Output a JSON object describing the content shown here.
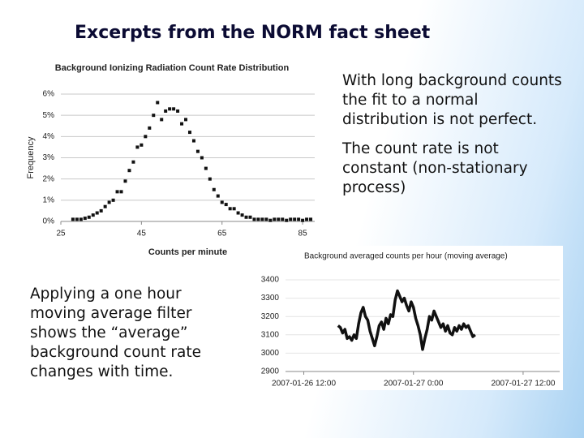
{
  "title": "Excerpts from the NORM fact sheet",
  "paragraphs": [
    "With long background counts the fit to a normal distribution is not perfect.",
    "The count rate is not constant (non-stationary process)",
    "Applying a one hour moving average filter shows the “average” background count rate changes with time."
  ],
  "chart_data": [
    {
      "type": "scatter",
      "title": "Background Ionizing Radiation Count Rate Distribution",
      "x_label": "Counts per minute",
      "y_label": "Frequency",
      "x": [
        28,
        29,
        30,
        31,
        32,
        33,
        34,
        35,
        36,
        37,
        38,
        39,
        40,
        41,
        42,
        43,
        44,
        45,
        46,
        47,
        48,
        49,
        50,
        51,
        52,
        53,
        54,
        55,
        56,
        57,
        58,
        59,
        60,
        61,
        62,
        63,
        64,
        65,
        66,
        67,
        68,
        69,
        70,
        71,
        72,
        73,
        74,
        75,
        76,
        77,
        78,
        79,
        80,
        81,
        82,
        83,
        84,
        85,
        86,
        87
      ],
      "values": [
        0.1,
        0.1,
        0.1,
        0.15,
        0.2,
        0.3,
        0.4,
        0.5,
        0.7,
        0.9,
        1.0,
        1.4,
        1.4,
        1.9,
        2.4,
        2.8,
        3.5,
        3.6,
        4.0,
        4.4,
        5.0,
        5.6,
        4.8,
        5.2,
        5.3,
        5.3,
        5.2,
        4.6,
        4.8,
        4.2,
        3.8,
        3.3,
        3.0,
        2.5,
        2.0,
        1.5,
        1.2,
        0.9,
        0.8,
        0.6,
        0.6,
        0.4,
        0.3,
        0.2,
        0.2,
        0.1,
        0.1,
        0.1,
        0.1,
        0.05,
        0.1,
        0.1,
        0.1,
        0.05,
        0.1,
        0.1,
        0.1,
        0.05,
        0.1,
        0.1
      ],
      "color": "#111111",
      "xlim": [
        25,
        88
      ],
      "xticks": [
        25,
        45,
        65,
        85
      ],
      "ylim": [
        0,
        6
      ],
      "yticks": [
        {
          "value": 0,
          "label": "0%"
        },
        {
          "value": 1,
          "label": "1%"
        },
        {
          "value": 2,
          "label": "2%"
        },
        {
          "value": 3,
          "label": "3%"
        },
        {
          "value": 4,
          "label": "4%"
        },
        {
          "value": 5,
          "label": "5%"
        },
        {
          "value": 6,
          "label": "6%"
        }
      ],
      "grid": true
    },
    {
      "type": "line",
      "title": "Background averaged counts per hour (moving average)",
      "x": [
        3.75,
        4,
        4.25,
        4.5,
        4.75,
        5,
        5.25,
        5.5,
        5.75,
        6,
        6.25,
        6.5,
        6.75,
        7,
        7.25,
        7.5,
        7.75,
        8,
        8.25,
        8.5,
        8.75,
        9,
        9.25,
        9.5,
        9.75,
        10,
        10.25,
        10.5,
        10.75,
        11,
        11.25,
        11.5,
        11.75,
        12,
        12.25,
        12.5,
        12.75,
        13,
        13.25,
        13.5,
        13.75,
        14,
        14.25,
        14.5,
        14.75,
        15,
        15.25,
        15.5,
        15.75,
        16,
        16.25,
        16.5,
        16.75,
        17,
        17.25,
        17.5,
        17.75,
        18,
        18.25,
        18.5,
        18.75
      ],
      "values": [
        3150,
        3140,
        3110,
        3130,
        3080,
        3090,
        3070,
        3100,
        3080,
        3160,
        3220,
        3250,
        3200,
        3180,
        3120,
        3080,
        3040,
        3090,
        3150,
        3170,
        3130,
        3190,
        3160,
        3210,
        3200,
        3290,
        3340,
        3310,
        3280,
        3300,
        3260,
        3230,
        3280,
        3250,
        3190,
        3150,
        3100,
        3020,
        3080,
        3130,
        3200,
        3180,
        3230,
        3200,
        3170,
        3140,
        3160,
        3120,
        3150,
        3110,
        3100,
        3140,
        3120,
        3150,
        3130,
        3160,
        3140,
        3150,
        3120,
        3090,
        3100
      ],
      "color": "#111111",
      "xlim": [
        -2,
        28
      ],
      "xticks": [
        {
          "value": 0,
          "label": "2007-01-26 12:00"
        },
        {
          "value": 12,
          "label": "2007-01-27 0:00"
        },
        {
          "value": 24,
          "label": "2007-01-27 12:00"
        }
      ],
      "ylim": [
        2900,
        3400
      ],
      "yticks": [
        2900,
        3000,
        3100,
        3200,
        3300,
        3400
      ],
      "grid": true
    }
  ]
}
